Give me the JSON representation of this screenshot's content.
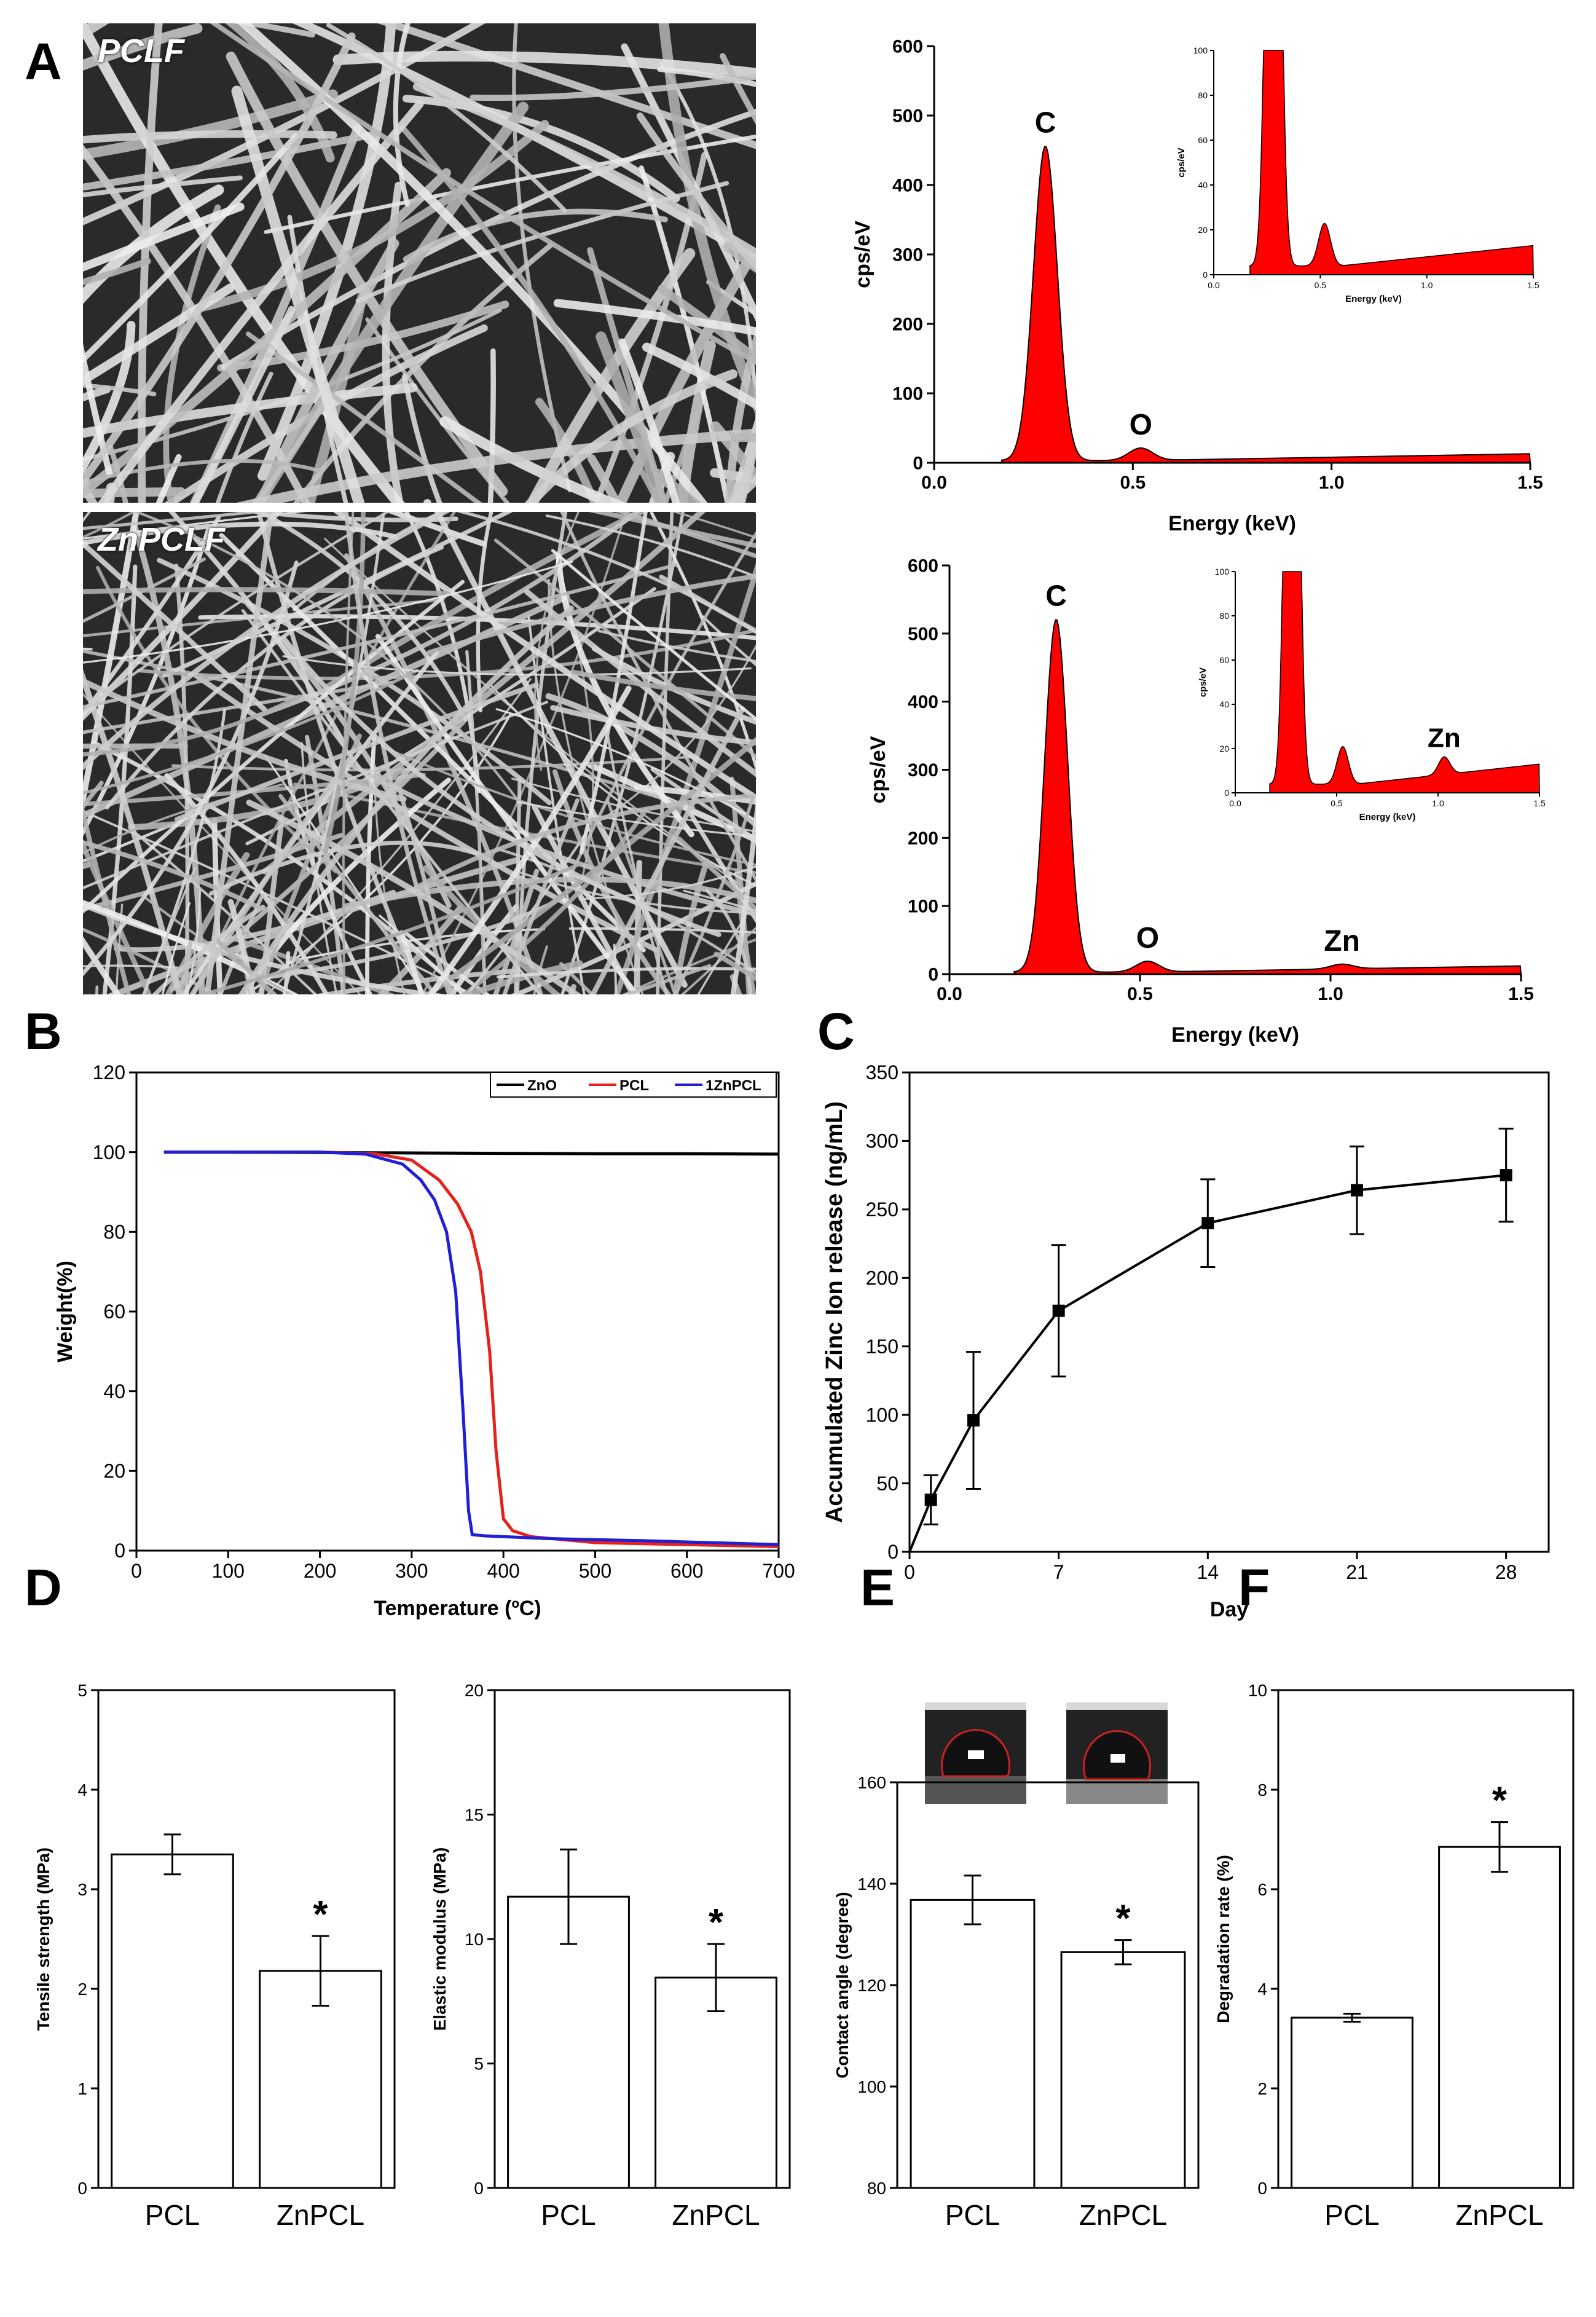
{
  "panels": {
    "A": "A",
    "B": "B",
    "C": "C",
    "D": "D",
    "E": "E",
    "F": "F"
  },
  "sem_images": [
    {
      "label": "PCLF"
    },
    {
      "label": "ZnPCLF"
    }
  ],
  "colors": {
    "eds_fill": "#ff0000",
    "zno": "#000000",
    "pcl": "#e8201c",
    "zn_pcl": "#1f1fd8",
    "line_black": "#000000"
  },
  "chart_data": [
    {
      "id": "eds-pcl",
      "type": "area",
      "xlabel": "Energy (keV)",
      "ylabel": "cps/eV",
      "xlim": [
        0,
        1.5
      ],
      "ylim": [
        0,
        600
      ],
      "xticks": [
        "0.0",
        "0.5",
        "1.0",
        "1.5"
      ],
      "yticks": [
        "0",
        "100",
        "200",
        "300",
        "400",
        "500",
        "600"
      ],
      "peaks": [
        {
          "label": "C",
          "x": 0.28,
          "y": 455
        },
        {
          "label": "O",
          "x": 0.52,
          "y": 20
        }
      ],
      "baseline_end": 13,
      "inset": {
        "xlabel": "Energy (keV)",
        "ylabel": "cps/eV",
        "xlim": [
          0,
          1.5
        ],
        "ylim": [
          0,
          100
        ],
        "xticks": [
          "0.0",
          "0.5",
          "1.0",
          "1.5"
        ],
        "yticks": [
          "0",
          "20",
          "40",
          "60",
          "80",
          "100"
        ],
        "peaks": [
          {
            "x": 0.28,
            "y": 100
          },
          {
            "x": 0.52,
            "y": 22
          }
        ],
        "baseline_end": 13
      }
    },
    {
      "id": "eds-znpcl",
      "type": "area",
      "xlabel": "Energy (keV)",
      "ylabel": "cps/eV",
      "xlim": [
        0,
        1.5
      ],
      "ylim": [
        0,
        600
      ],
      "xticks": [
        "0.0",
        "0.5",
        "1.0",
        "1.5"
      ],
      "yticks": [
        "0",
        "100",
        "200",
        "300",
        "400",
        "500",
        "600"
      ],
      "peaks": [
        {
          "label": "C",
          "x": 0.28,
          "y": 520
        },
        {
          "label": "O",
          "x": 0.52,
          "y": 18
        },
        {
          "label": "Zn",
          "x": 1.03,
          "y": 9
        }
      ],
      "baseline_end": 12,
      "inset": {
        "xlabel": "Energy (keV)",
        "ylabel": "cps/eV",
        "xlim": [
          0,
          1.5
        ],
        "ylim": [
          0,
          100
        ],
        "xticks": [
          "0.0",
          "0.5",
          "1.0",
          "1.5"
        ],
        "yticks": [
          "0",
          "20",
          "40",
          "60",
          "80",
          "100"
        ],
        "peaks": [
          {
            "x": 0.28,
            "y": 100
          },
          {
            "x": 0.53,
            "y": 20
          },
          {
            "label": "Zn",
            "x": 1.03,
            "y": 11
          }
        ],
        "baseline_end": 13
      }
    },
    {
      "id": "tga",
      "type": "line",
      "xlabel": "Temperature (ºC)",
      "ylabel": "Weight(%)",
      "xlim": [
        0,
        700
      ],
      "ylim": [
        0,
        120
      ],
      "xticks": [
        "0",
        "100",
        "200",
        "300",
        "400",
        "500",
        "600",
        "700"
      ],
      "yticks": [
        "0",
        "20",
        "40",
        "60",
        "80",
        "100",
        "120"
      ],
      "legend_position": "top-right",
      "series": [
        {
          "name": "ZnO",
          "x": [
            30,
            100,
            200,
            300,
            400,
            500,
            600,
            700
          ],
          "y": [
            100,
            100,
            99.9,
            99.8,
            99.7,
            99.6,
            99.6,
            99.5
          ]
        },
        {
          "name": "PCL",
          "x": [
            30,
            200,
            260,
            300,
            330,
            350,
            365,
            375,
            385,
            392,
            400,
            410,
            430,
            500,
            600,
            700
          ],
          "y": [
            100,
            100,
            99.6,
            98,
            93,
            87,
            80,
            70,
            50,
            25,
            8,
            5,
            3.5,
            2,
            1.5,
            1
          ]
        },
        {
          "name": "1ZnPCL",
          "x": [
            30,
            200,
            250,
            290,
            310,
            325,
            338,
            348,
            356,
            362,
            366,
            380,
            450,
            550,
            700
          ],
          "y": [
            100,
            100,
            99.5,
            97,
            93,
            88,
            80,
            65,
            35,
            10,
            4,
            3.7,
            3,
            2.5,
            1.5
          ]
        }
      ]
    },
    {
      "id": "zinc-release",
      "type": "line",
      "xlabel": "Day",
      "ylabel": "Accumulated Zinc Ion release (ng/mL)",
      "xlim": [
        0,
        30
      ],
      "ylim": [
        0,
        350
      ],
      "xticks": [
        "0",
        "7",
        "14",
        "21",
        "28"
      ],
      "yticks": [
        "0",
        "50",
        "100",
        "150",
        "200",
        "250",
        "300",
        "350"
      ],
      "x": [
        1,
        3,
        7,
        14,
        21,
        28
      ],
      "y": [
        38,
        96,
        176,
        240,
        264,
        275
      ],
      "err": [
        18,
        50,
        48,
        32,
        32,
        34
      ]
    },
    {
      "id": "tensile",
      "type": "bar",
      "ylabel": "Tensile strength (MPa)",
      "ylim": [
        0,
        5
      ],
      "yticks": [
        "0",
        "1",
        "2",
        "3",
        "4",
        "5"
      ],
      "categories": [
        "PCL",
        "ZnPCL"
      ],
      "values": [
        3.35,
        2.18
      ],
      "err": [
        0.2,
        0.35
      ],
      "sig": [
        "",
        "*"
      ]
    },
    {
      "id": "modulus",
      "type": "bar",
      "ylabel": "Elastic modulus (MPa)",
      "ylim": [
        0,
        20
      ],
      "yticks": [
        "0",
        "5",
        "10",
        "15",
        "20"
      ],
      "categories": [
        "PCL",
        "ZnPCL"
      ],
      "values": [
        11.7,
        8.45
      ],
      "err": [
        1.9,
        1.35
      ],
      "sig": [
        "",
        "*"
      ]
    },
    {
      "id": "contact-angle",
      "type": "bar",
      "ylabel": "Contact angle (degree)",
      "ylim": [
        80,
        160
      ],
      "yticks": [
        "80",
        "100",
        "120",
        "140",
        "160"
      ],
      "categories": [
        "PCL",
        "ZnPCL"
      ],
      "values": [
        136.8,
        126.5
      ],
      "err": [
        4.8,
        2.4
      ],
      "sig": [
        "",
        "*"
      ]
    },
    {
      "id": "degradation",
      "type": "bar",
      "ylabel": "Degradation rate (%)",
      "ylim": [
        0,
        10
      ],
      "yticks": [
        "0",
        "2",
        "4",
        "6",
        "8",
        "10"
      ],
      "categories": [
        "PCL",
        "ZnPCL"
      ],
      "values": [
        3.42,
        6.85
      ],
      "err": [
        0.08,
        0.5
      ],
      "sig": [
        "",
        "*"
      ]
    }
  ]
}
